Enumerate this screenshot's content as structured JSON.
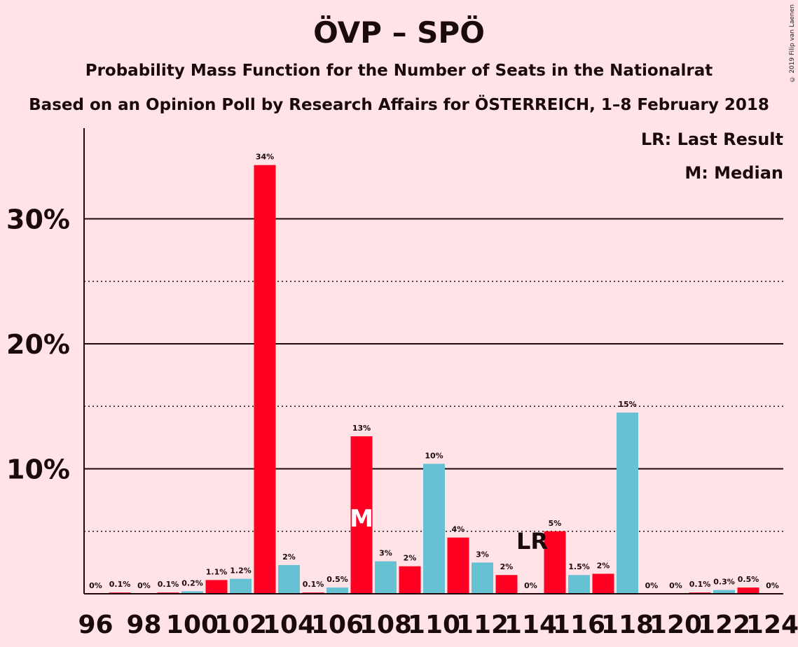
{
  "title": "ÖVP – SPÖ",
  "subtitle": "Probability Mass Function for the Number of Seats in the Nationalrat",
  "subtitle2": "Based on an Opinion Poll by Research Affairs for ÖSTERREICH, 1–8 February 2018",
  "copyright": "© 2019 Filip van Laenen",
  "legend": {
    "last_result": "LR: Last Result",
    "median": "M: Median"
  },
  "chart_data": {
    "type": "bar",
    "ylim": [
      0,
      37
    ],
    "y_ticks": [
      10,
      20,
      30
    ],
    "y_tick_labels": [
      "10%",
      "20%",
      "30%"
    ],
    "dotted_gridlines": [
      5,
      15,
      25
    ],
    "x_tick_labels": [
      "96",
      "98",
      "100",
      "102",
      "104",
      "106",
      "108",
      "110",
      "112",
      "114",
      "116",
      "118",
      "120",
      "122",
      "124"
    ],
    "x_tick_values": [
      96,
      98,
      100,
      102,
      104,
      106,
      108,
      110,
      112,
      114,
      116,
      118,
      120,
      122,
      124
    ],
    "median_seat": 107,
    "last_result_seat": 114,
    "median_marker": "M",
    "last_result_marker": "LR",
    "colors": {
      "red": "#FF0022",
      "cyan": "#66C2D3",
      "background": "#FFE3E6"
    },
    "bars": [
      {
        "seat": 96,
        "value": 0,
        "label": "0%",
        "color": "cyan"
      },
      {
        "seat": 97,
        "value": 0.1,
        "label": "0.1%",
        "color": "red"
      },
      {
        "seat": 98,
        "value": 0,
        "label": "0%",
        "color": "cyan"
      },
      {
        "seat": 99,
        "value": 0.1,
        "label": "0.1%",
        "color": "red"
      },
      {
        "seat": 100,
        "value": 0.2,
        "label": "0.2%",
        "color": "cyan"
      },
      {
        "seat": 101,
        "value": 1.1,
        "label": "1.1%",
        "color": "red"
      },
      {
        "seat": 102,
        "value": 1.2,
        "label": "1.2%",
        "color": "cyan"
      },
      {
        "seat": 103,
        "value": 34.3,
        "label": "34%",
        "color": "red"
      },
      {
        "seat": 104,
        "value": 2.3,
        "label": "2%",
        "color": "cyan"
      },
      {
        "seat": 105,
        "value": 0.1,
        "label": "0.1%",
        "color": "red"
      },
      {
        "seat": 106,
        "value": 0.5,
        "label": "0.5%",
        "color": "cyan"
      },
      {
        "seat": 107,
        "value": 12.6,
        "label": "13%",
        "color": "red"
      },
      {
        "seat": 108,
        "value": 2.6,
        "label": "3%",
        "color": "cyan"
      },
      {
        "seat": 109,
        "value": 2.2,
        "label": "2%",
        "color": "red"
      },
      {
        "seat": 110,
        "value": 10.4,
        "label": "10%",
        "color": "cyan"
      },
      {
        "seat": 111,
        "value": 4.5,
        "label": "4%",
        "color": "red"
      },
      {
        "seat": 112,
        "value": 2.5,
        "label": "3%",
        "color": "cyan"
      },
      {
        "seat": 113,
        "value": 1.5,
        "label": "2%",
        "color": "red"
      },
      {
        "seat": 114,
        "value": 0,
        "label": "0%",
        "color": "cyan"
      },
      {
        "seat": 115,
        "value": 5.0,
        "label": "5%",
        "color": "red"
      },
      {
        "seat": 116,
        "value": 1.5,
        "label": "1.5%",
        "color": "cyan"
      },
      {
        "seat": 117,
        "value": 1.6,
        "label": "2%",
        "color": "red"
      },
      {
        "seat": 118,
        "value": 14.5,
        "label": "15%",
        "color": "cyan"
      },
      {
        "seat": 119,
        "value": 0,
        "label": "0%",
        "color": "red"
      },
      {
        "seat": 120,
        "value": 0,
        "label": "0%",
        "color": "cyan"
      },
      {
        "seat": 121,
        "value": 0.1,
        "label": "0.1%",
        "color": "red"
      },
      {
        "seat": 122,
        "value": 0.3,
        "label": "0.3%",
        "color": "cyan"
      },
      {
        "seat": 123,
        "value": 0.5,
        "label": "0.5%",
        "color": "red"
      },
      {
        "seat": 124,
        "value": 0,
        "label": "0%",
        "color": "cyan"
      }
    ]
  }
}
